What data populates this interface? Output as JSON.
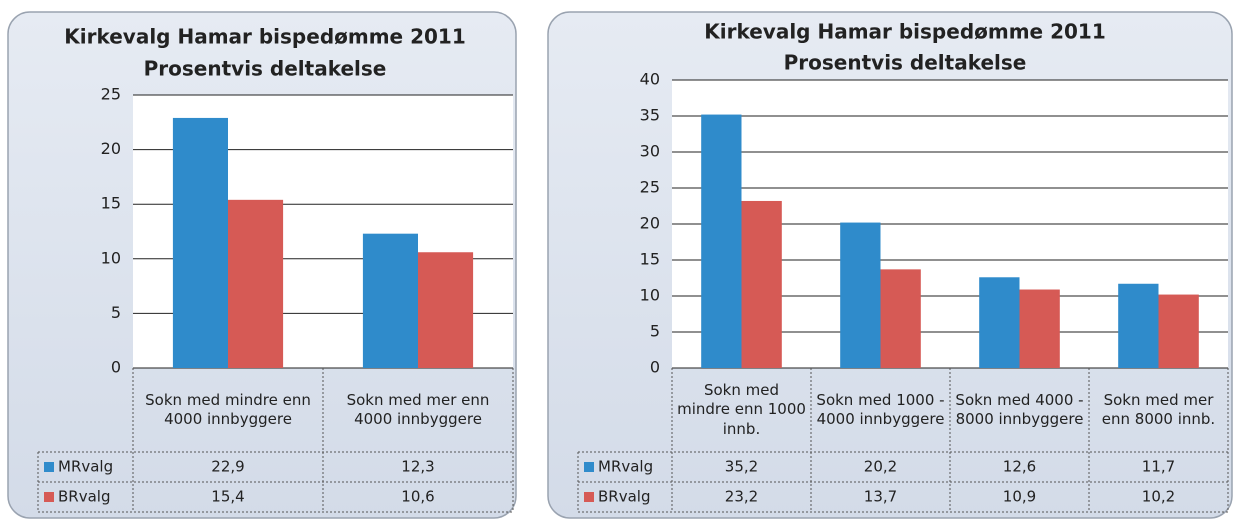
{
  "chart_data": [
    {
      "type": "bar",
      "title": "Kirkevalg Hamar bispedømme 2011",
      "subtitle": "Prosentvis deltakelse",
      "categories": [
        "Sokn med mindre enn 4000 innbyggere",
        "Sokn med mer enn 4000 innbyggere"
      ],
      "series": [
        {
          "name": "MRvalg",
          "color": "#2f8bcb",
          "values": [
            22.9,
            12.3
          ],
          "value_labels": [
            "22,9",
            "12,3"
          ]
        },
        {
          "name": "BRvalg",
          "color": "#d65a55",
          "values": [
            15.4,
            10.6
          ],
          "value_labels": [
            "15,4",
            "10,6"
          ]
        }
      ],
      "ylim": [
        0,
        25
      ],
      "yticks": [
        0,
        5,
        10,
        15,
        20,
        25
      ],
      "grid": true
    },
    {
      "type": "bar",
      "title": "Kirkevalg Hamar bispedømme 2011",
      "subtitle": "Prosentvis deltakelse",
      "categories": [
        "Sokn med mindre enn 1000 innb.",
        "Sokn med 1000 - 4000 innbyggere",
        "Sokn med 4000 - 8000 innbyggere",
        "Sokn med mer enn 8000 innb."
      ],
      "series": [
        {
          "name": "MRvalg",
          "color": "#2f8bcb",
          "values": [
            35.2,
            20.2,
            12.6,
            11.7
          ],
          "value_labels": [
            "35,2",
            "20,2",
            "12,6",
            "11,7"
          ]
        },
        {
          "name": "BRvalg",
          "color": "#d65a55",
          "values": [
            23.2,
            13.7,
            10.9,
            10.2
          ],
          "value_labels": [
            "23,2",
            "13,7",
            "10,9",
            "10,2"
          ]
        }
      ],
      "ylim": [
        0,
        40
      ],
      "yticks": [
        0,
        5,
        10,
        15,
        20,
        25,
        30,
        35,
        40
      ],
      "grid": true
    }
  ]
}
